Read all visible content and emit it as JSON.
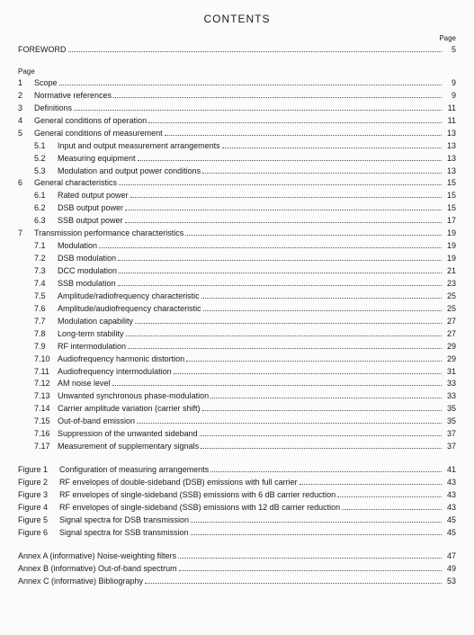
{
  "title": "CONTENTS",
  "pageLabel": "Page",
  "foreword": {
    "label": "FOREWORD",
    "page": "5"
  },
  "sections": [
    {
      "num": "1",
      "label": "Scope",
      "page": "9"
    },
    {
      "num": "2",
      "label": "Normative references",
      "page": "9"
    },
    {
      "num": "3",
      "label": "Definitions",
      "page": "11"
    },
    {
      "num": "4",
      "label": "General conditions of operation",
      "page": "11"
    },
    {
      "num": "5",
      "label": "General conditions of measurement",
      "page": "13",
      "subs": [
        {
          "num": "5.1",
          "label": "Input and output measurement arrangements",
          "page": "13"
        },
        {
          "num": "5.2",
          "label": "Measuring equipment",
          "page": "13"
        },
        {
          "num": "5.3",
          "label": "Modulation and output power conditions",
          "page": "13"
        }
      ]
    },
    {
      "num": "6",
      "label": "General characteristics",
      "page": "15",
      "subs": [
        {
          "num": "6.1",
          "label": "Rated output power",
          "page": "15"
        },
        {
          "num": "6.2",
          "label": "DSB output power",
          "page": "15"
        },
        {
          "num": "6.3",
          "label": "SSB output power",
          "page": "17"
        }
      ]
    },
    {
      "num": "7",
      "label": "Transmission performance characteristics",
      "page": "19",
      "subs": [
        {
          "num": "7.1",
          "label": "Modulation",
          "page": "19"
        },
        {
          "num": "7.2",
          "label": "DSB modulation",
          "page": "19"
        },
        {
          "num": "7.3",
          "label": "DCC modulation",
          "page": "21"
        },
        {
          "num": "7.4",
          "label": "SSB modulation",
          "page": "23"
        },
        {
          "num": "7.5",
          "label": "Amplitude/radiofrequency characteristic",
          "page": "25"
        },
        {
          "num": "7.6",
          "label": "Amplitude/audiofrequency characteristic",
          "page": "25"
        },
        {
          "num": "7.7",
          "label": "Modulation capability",
          "page": "27"
        },
        {
          "num": "7.8",
          "label": "Long-term stability",
          "page": "27"
        },
        {
          "num": "7.9",
          "label": "RF intermodulation",
          "page": "29"
        },
        {
          "num": "7.10",
          "label": "Audiofrequency harmonic distortion",
          "page": "29"
        },
        {
          "num": "7.11",
          "label": "Audiofrequency intermodulation",
          "page": "31"
        },
        {
          "num": "7.12",
          "label": "AM noise level",
          "page": "33"
        },
        {
          "num": "7.13",
          "label": "Unwanted synchronous phase-modulation",
          "page": "33"
        },
        {
          "num": "7.14",
          "label": "Carrier amplitude variation (carrier shift)",
          "page": "35"
        },
        {
          "num": "7.15",
          "label": "Out-of-band emission",
          "page": "35"
        },
        {
          "num": "7.16",
          "label": "Suppression of the unwanted sideband",
          "page": "37"
        },
        {
          "num": "7.17",
          "label": "Measurement of supplementary signals",
          "page": "37"
        }
      ]
    }
  ],
  "figures": [
    {
      "num": "Figure 1",
      "label": "Configuration of measuring arrangements",
      "page": "41"
    },
    {
      "num": "Figure 2",
      "label": "RF envelopes of double-sideband (DSB) emissions with full carrier",
      "page": "43"
    },
    {
      "num": "Figure 3",
      "label": "RF envelopes of single-sideband (SSB) emissions with 6 dB carrier reduction",
      "page": "43"
    },
    {
      "num": "Figure 4",
      "label": "RF envelopes of single-sideband (SSB) emissions with 12 dB carrier reduction",
      "page": "43"
    },
    {
      "num": "Figure 5",
      "label": "Signal spectra for DSB transmission",
      "page": "45"
    },
    {
      "num": "Figure 6",
      "label": "Signal spectra for SSB transmission",
      "page": "45"
    }
  ],
  "annexes": [
    {
      "label": "Annex A (informative) Noise-weighting filters",
      "page": "47"
    },
    {
      "label": "Annex B (informative) Out-of-band spectrum",
      "page": "49"
    },
    {
      "label": "Annex C (informative) Bibliography",
      "page": "53"
    }
  ]
}
